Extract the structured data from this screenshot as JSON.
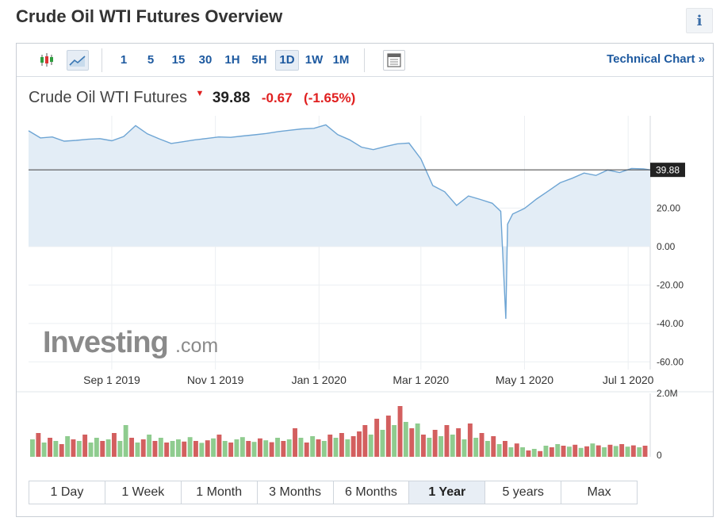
{
  "page": {
    "title": "Crude Oil WTI Futures Overview",
    "info_label": "i"
  },
  "toolbar": {
    "timeframes": [
      {
        "label": "1",
        "active": false
      },
      {
        "label": "5",
        "active": false
      },
      {
        "label": "15",
        "active": false
      },
      {
        "label": "30",
        "active": false
      },
      {
        "label": "1H",
        "active": false
      },
      {
        "label": "5H",
        "active": false
      },
      {
        "label": "1D",
        "active": true
      },
      {
        "label": "1W",
        "active": false
      },
      {
        "label": "1M",
        "active": false
      }
    ],
    "icons": [
      "candlestick-icon",
      "area-chart-icon",
      "calendar-icon"
    ],
    "technical_link": "Technical Chart »"
  },
  "quote": {
    "name": "Crude Oil WTI Futures",
    "price": "39.88",
    "change": "-0.67",
    "change_pct": "(-1.65%)",
    "direction_icon": "down-arrow-icon"
  },
  "colors": {
    "line": "#6ea5d4",
    "fill": "#e3edf6",
    "up_volume": "#8fcc8f",
    "down_volume": "#d35f5f",
    "price_tag_bg": "#222222",
    "accent": "#1e5aa0",
    "negative": "#e02020"
  },
  "watermark": {
    "brand": "Investing",
    "suffix": ".com"
  },
  "chart_data": {
    "type": "area",
    "price_tag": "39.88",
    "current_price": 39.88,
    "y_ticks": [
      "20.00",
      "0.00",
      "-20.00",
      "-40.00",
      "-60.00"
    ],
    "y_tick_values": [
      20,
      0,
      -20,
      -40,
      -60
    ],
    "ylim": [
      -64,
      68
    ],
    "x_ticks": [
      "Sep 1 2019",
      "Nov 1 2019",
      "Jan 1 2020",
      "Mar 1 2020",
      "May 1 2020",
      "Jul 1 2020"
    ],
    "x_tick_dates": [
      "2019-09-01",
      "2019-11-01",
      "2020-01-01",
      "2020-03-01",
      "2020-05-01",
      "2020-07-01"
    ],
    "xlim": [
      "2019-07-14",
      "2020-07-14"
    ],
    "series": [
      {
        "x": [
          "2019-07-14",
          "2019-07-21",
          "2019-07-28",
          "2019-08-04",
          "2019-08-11",
          "2019-08-18",
          "2019-08-25",
          "2019-09-01",
          "2019-09-08",
          "2019-09-15",
          "2019-09-22",
          "2019-09-29",
          "2019-10-06",
          "2019-10-13",
          "2019-10-20",
          "2019-10-27",
          "2019-11-03",
          "2019-11-10",
          "2019-11-17",
          "2019-11-24",
          "2019-12-01",
          "2019-12-08",
          "2019-12-15",
          "2019-12-22",
          "2019-12-29",
          "2020-01-05",
          "2020-01-12",
          "2020-01-19",
          "2020-01-26",
          "2020-02-02",
          "2020-02-09",
          "2020-02-16",
          "2020-02-23",
          "2020-03-01",
          "2020-03-08",
          "2020-03-15",
          "2020-03-22",
          "2020-03-29",
          "2020-04-05",
          "2020-04-12",
          "2020-04-17",
          "2020-04-20",
          "2020-04-21",
          "2020-04-24",
          "2020-05-01",
          "2020-05-08",
          "2020-05-15",
          "2020-05-22",
          "2020-05-29",
          "2020-06-05",
          "2020-06-12",
          "2020-06-19",
          "2020-06-26",
          "2020-07-03",
          "2020-07-10",
          "2020-07-14"
        ],
        "values": [
          60.2,
          56.5,
          57.0,
          54.8,
          55.2,
          55.8,
          56.1,
          55.0,
          57.2,
          62.9,
          58.6,
          56.0,
          53.6,
          54.5,
          55.5,
          56.2,
          57.0,
          56.8,
          57.5,
          58.1,
          58.8,
          59.8,
          60.5,
          61.2,
          61.5,
          63.3,
          58.2,
          55.5,
          51.7,
          50.4,
          52.0,
          53.4,
          53.8,
          45.6,
          31.7,
          28.5,
          21.4,
          26.3,
          24.5,
          22.5,
          18.3,
          -37.6,
          11.6,
          16.9,
          19.8,
          24.7,
          28.9,
          33.2,
          35.5,
          38.2,
          37.0,
          39.8,
          38.5,
          40.6,
          40.4,
          39.88
        ]
      }
    ],
    "volume": {
      "axis_labels": [
        "2.0M",
        "0"
      ],
      "max": 2000000,
      "bars": [
        {
          "v": 0.55,
          "up": true
        },
        {
          "v": 0.75,
          "up": false
        },
        {
          "v": 0.45,
          "up": true
        },
        {
          "v": 0.6,
          "up": false
        },
        {
          "v": 0.5,
          "up": true
        },
        {
          "v": 0.4,
          "up": false
        },
        {
          "v": 0.65,
          "up": true
        },
        {
          "v": 0.55,
          "up": false
        },
        {
          "v": 0.5,
          "up": true
        },
        {
          "v": 0.7,
          "up": false
        },
        {
          "v": 0.45,
          "up": true
        },
        {
          "v": 0.6,
          "up": true
        },
        {
          "v": 0.5,
          "up": false
        },
        {
          "v": 0.55,
          "up": true
        },
        {
          "v": 0.75,
          "up": false
        },
        {
          "v": 0.5,
          "up": true
        },
        {
          "v": 1.0,
          "up": true
        },
        {
          "v": 0.6,
          "up": false
        },
        {
          "v": 0.45,
          "up": true
        },
        {
          "v": 0.55,
          "up": false
        },
        {
          "v": 0.7,
          "up": true
        },
        {
          "v": 0.5,
          "up": false
        },
        {
          "v": 0.6,
          "up": true
        },
        {
          "v": 0.45,
          "up": false
        },
        {
          "v": 0.5,
          "up": true
        },
        {
          "v": 0.55,
          "up": true
        },
        {
          "v": 0.48,
          "up": false
        },
        {
          "v": 0.62,
          "up": true
        },
        {
          "v": 0.5,
          "up": false
        },
        {
          "v": 0.44,
          "up": true
        },
        {
          "v": 0.52,
          "up": false
        },
        {
          "v": 0.58,
          "up": true
        },
        {
          "v": 0.7,
          "up": false
        },
        {
          "v": 0.5,
          "up": true
        },
        {
          "v": 0.45,
          "up": false
        },
        {
          "v": 0.55,
          "up": true
        },
        {
          "v": 0.62,
          "up": true
        },
        {
          "v": 0.5,
          "up": false
        },
        {
          "v": 0.47,
          "up": true
        },
        {
          "v": 0.58,
          "up": false
        },
        {
          "v": 0.52,
          "up": true
        },
        {
          "v": 0.46,
          "up": false
        },
        {
          "v": 0.6,
          "up": true
        },
        {
          "v": 0.5,
          "up": false
        },
        {
          "v": 0.55,
          "up": true
        },
        {
          "v": 0.9,
          "up": false
        },
        {
          "v": 0.6,
          "up": true
        },
        {
          "v": 0.45,
          "up": false
        },
        {
          "v": 0.65,
          "up": true
        },
        {
          "v": 0.55,
          "up": false
        },
        {
          "v": 0.5,
          "up": true
        },
        {
          "v": 0.7,
          "up": false
        },
        {
          "v": 0.6,
          "up": true
        },
        {
          "v": 0.75,
          "up": false
        },
        {
          "v": 0.55,
          "up": true
        },
        {
          "v": 0.65,
          "up": false
        },
        {
          "v": 0.8,
          "up": false
        },
        {
          "v": 1.0,
          "up": false
        },
        {
          "v": 0.7,
          "up": true
        },
        {
          "v": 1.2,
          "up": false
        },
        {
          "v": 0.85,
          "up": true
        },
        {
          "v": 1.3,
          "up": false
        },
        {
          "v": 1.0,
          "up": true
        },
        {
          "v": 1.6,
          "up": false
        },
        {
          "v": 1.1,
          "up": true
        },
        {
          "v": 0.9,
          "up": false
        },
        {
          "v": 1.05,
          "up": true
        },
        {
          "v": 0.7,
          "up": false
        },
        {
          "v": 0.6,
          "up": true
        },
        {
          "v": 0.85,
          "up": false
        },
        {
          "v": 0.65,
          "up": true
        },
        {
          "v": 1.0,
          "up": false
        },
        {
          "v": 0.7,
          "up": true
        },
        {
          "v": 0.9,
          "up": false
        },
        {
          "v": 0.55,
          "up": true
        },
        {
          "v": 1.05,
          "up": false
        },
        {
          "v": 0.6,
          "up": true
        },
        {
          "v": 0.75,
          "up": false
        },
        {
          "v": 0.5,
          "up": true
        },
        {
          "v": 0.65,
          "up": false
        },
        {
          "v": 0.4,
          "up": true
        },
        {
          "v": 0.5,
          "up": false
        },
        {
          "v": 0.3,
          "up": true
        },
        {
          "v": 0.42,
          "up": false
        },
        {
          "v": 0.3,
          "up": true
        },
        {
          "v": 0.2,
          "up": false
        },
        {
          "v": 0.25,
          "up": true
        },
        {
          "v": 0.18,
          "up": false
        },
        {
          "v": 0.35,
          "up": true
        },
        {
          "v": 0.3,
          "up": false
        },
        {
          "v": 0.4,
          "up": true
        },
        {
          "v": 0.35,
          "up": false
        },
        {
          "v": 0.32,
          "up": true
        },
        {
          "v": 0.38,
          "up": false
        },
        {
          "v": 0.28,
          "up": true
        },
        {
          "v": 0.33,
          "up": false
        },
        {
          "v": 0.42,
          "up": true
        },
        {
          "v": 0.36,
          "up": false
        },
        {
          "v": 0.3,
          "up": true
        },
        {
          "v": 0.38,
          "up": false
        },
        {
          "v": 0.34,
          "up": true
        },
        {
          "v": 0.4,
          "up": false
        },
        {
          "v": 0.32,
          "up": true
        },
        {
          "v": 0.36,
          "up": false
        },
        {
          "v": 0.3,
          "up": true
        },
        {
          "v": 0.35,
          "up": false
        }
      ]
    },
    "grid": true
  },
  "ranges": [
    {
      "label": "1 Day",
      "active": false
    },
    {
      "label": "1 Week",
      "active": false
    },
    {
      "label": "1 Month",
      "active": false
    },
    {
      "label": "3 Months",
      "active": false
    },
    {
      "label": "6 Months",
      "active": false
    },
    {
      "label": "1 Year",
      "active": true
    },
    {
      "label": "5 years",
      "active": false
    },
    {
      "label": "Max",
      "active": false
    }
  ]
}
